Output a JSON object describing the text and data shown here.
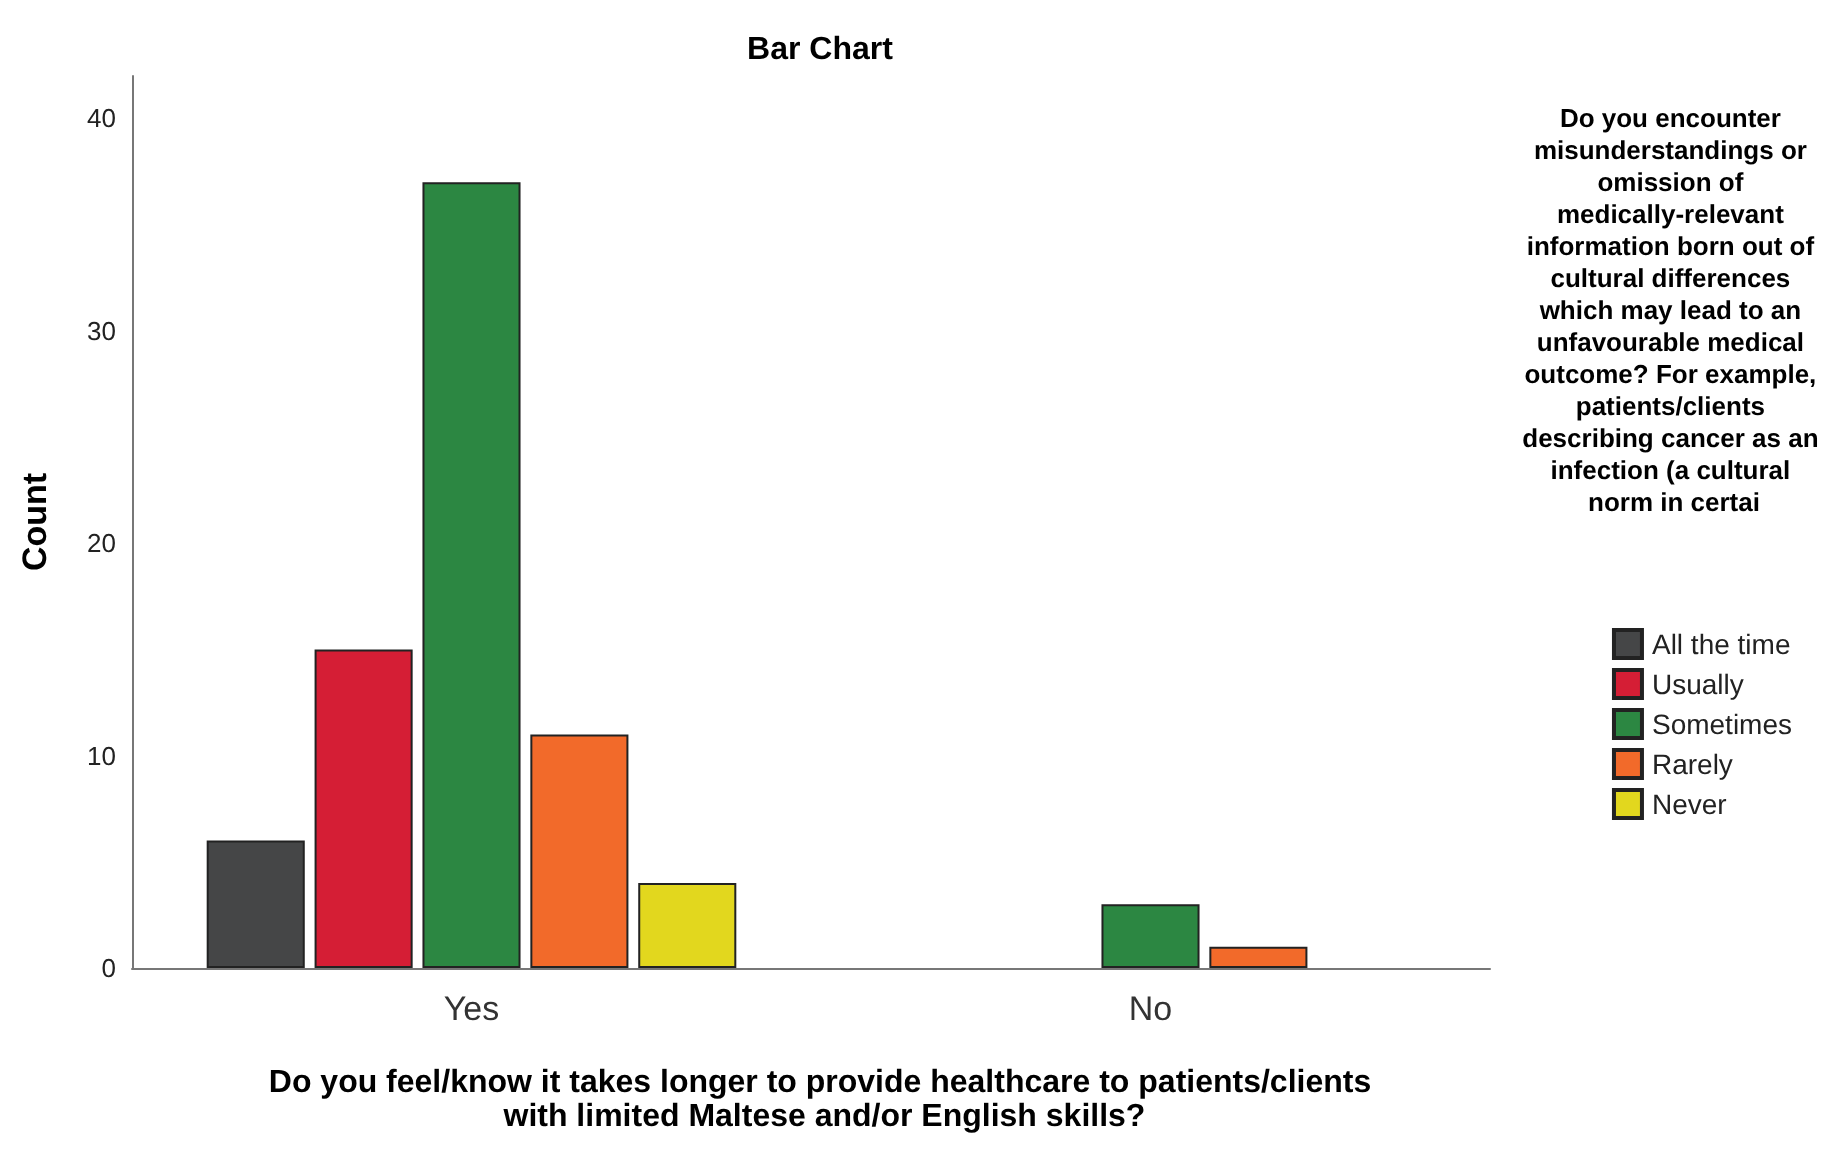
{
  "chart_data": {
    "type": "bar",
    "title": "Bar Chart",
    "xlabel": "Do you feel/know it takes longer to provide healthcare to patients/clients with limited Maltese and/or English skills?",
    "ylabel": "Count",
    "legend_title": "Do you encounter misunderstandings or omission of medically-relevant information born out of cultural differences which may lead to an unfavourable medical outcome? For example, patients/clients describing cancer as an infection (a cultural norm in certai",
    "categories": [
      "Yes",
      "No"
    ],
    "series": [
      {
        "name": "All the time",
        "color": "#454647",
        "values": [
          6,
          null
        ]
      },
      {
        "name": "Usually",
        "color": "#d51e35",
        "values": [
          15,
          null
        ]
      },
      {
        "name": "Sometimes",
        "color": "#2c8742",
        "values": [
          37,
          3
        ]
      },
      {
        "name": "Rarely",
        "color": "#f26a2a",
        "values": [
          11,
          1
        ]
      },
      {
        "name": "Never",
        "color": "#e2d71e",
        "values": [
          4,
          null
        ]
      }
    ],
    "ylim": [
      0,
      42
    ],
    "yticks": [
      0,
      10,
      20,
      30,
      40
    ],
    "grid": false,
    "legend": "right"
  }
}
